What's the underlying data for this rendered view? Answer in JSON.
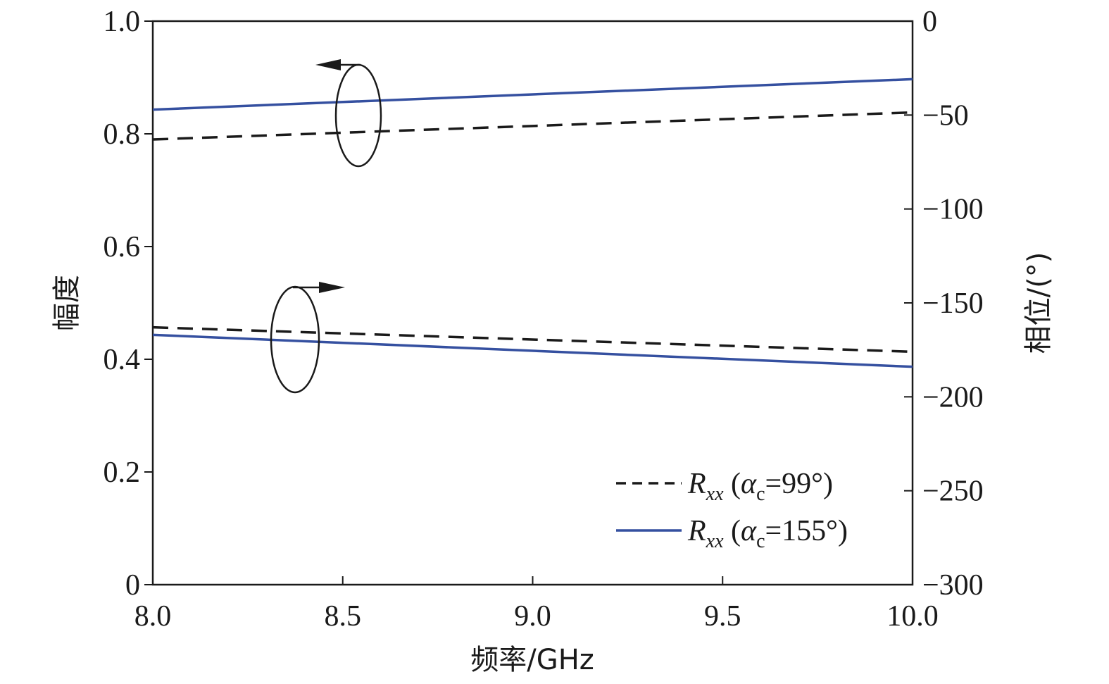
{
  "chart_data": {
    "type": "line",
    "xlabel": "频率/GHz",
    "ylabel_left": "幅度",
    "ylabel_right": "相位/(°)",
    "xlim": [
      8.0,
      10.0
    ],
    "ylim_left": [
      0,
      1.0
    ],
    "ylim_right": [
      -300,
      0
    ],
    "xticks": [
      "8.0",
      "8.5",
      "9.0",
      "9.5",
      "10.0"
    ],
    "yticks_left": [
      "0",
      "0.2",
      "0.4",
      "0.6",
      "0.8",
      "1.0"
    ],
    "yticks_right": [
      "0",
      "−50",
      "−100",
      "−150",
      "−200",
      "−250",
      "−300"
    ],
    "grid": false,
    "legend_position": "bottom-right",
    "legend": [
      {
        "symbol": "R",
        "subscript": "xx",
        "paren_open": " (",
        "alpha": "α",
        "alpha_sub": "c",
        "value": "=99°)"
      },
      {
        "symbol": "R",
        "subscript": "xx",
        "paren_open": " (",
        "alpha": "α",
        "alpha_sub": "c",
        "value": "=155°)"
      }
    ],
    "series": [
      {
        "axis": "left",
        "style": "dashed",
        "color": "#1a1a1a",
        "x": [
          8.0,
          10.0
        ],
        "values": [
          0.79,
          0.838
        ]
      },
      {
        "axis": "left",
        "style": "solid",
        "color": "#3550a0",
        "x": [
          8.0,
          10.0
        ],
        "values": [
          0.843,
          0.897
        ]
      },
      {
        "axis": "right",
        "style": "dashed",
        "color": "#1a1a1a",
        "x": [
          8.0,
          10.0
        ],
        "values": [
          -163,
          -176
        ]
      },
      {
        "axis": "right",
        "style": "solid",
        "color": "#3550a0",
        "x": [
          8.0,
          10.0
        ],
        "values": [
          -167,
          -184
        ]
      }
    ]
  }
}
